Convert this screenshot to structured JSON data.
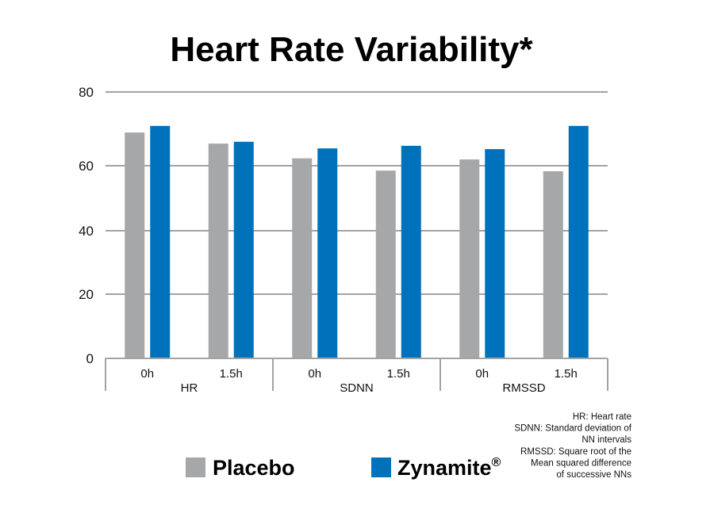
{
  "chart_data": {
    "type": "bar",
    "title": "Heart Rate Variability*",
    "xlabel": "",
    "ylabel": "",
    "ylim": [
      0,
      80
    ],
    "yticks": [
      0,
      20,
      40,
      60,
      80
    ],
    "ytick_labels": [
      "0",
      "20",
      "40",
      "60",
      "80"
    ],
    "grid": true,
    "groups": [
      {
        "name": "HR",
        "categories": [
          "0h",
          "1.5h"
        ]
      },
      {
        "name": "SDNN",
        "categories": [
          "0h",
          "1.5h"
        ]
      },
      {
        "name": "RMSSD",
        "categories": [
          "0h",
          "1.5h"
        ]
      }
    ],
    "categories": [
      "HR 0h",
      "HR 1.5h",
      "SDNN 0h",
      "SDNN 1.5h",
      "RMSSD 0h",
      "RMSSD 1.5h"
    ],
    "series": [
      {
        "name": "Placebo",
        "color": "#a5a7a8",
        "values": [
          69,
          66,
          62,
          58.5,
          61.7,
          58.3
        ]
      },
      {
        "name": "Zynamite",
        "superscript": "®",
        "color": "#0072bc",
        "values": [
          70.8,
          66.5,
          64.7,
          65.4,
          64.5,
          70.8
        ]
      }
    ],
    "legend": {
      "placement": "bottom",
      "items": [
        {
          "label": "Placebo",
          "superscript": ""
        },
        {
          "label": "Zynamite",
          "superscript": "®"
        }
      ]
    },
    "footnote": [
      "HR: Heart rate",
      "SDNN: Standard deviation of",
      "NN intervals",
      "RMSSD: Square root of the",
      "Mean squared difference",
      "of successive NNs"
    ]
  }
}
